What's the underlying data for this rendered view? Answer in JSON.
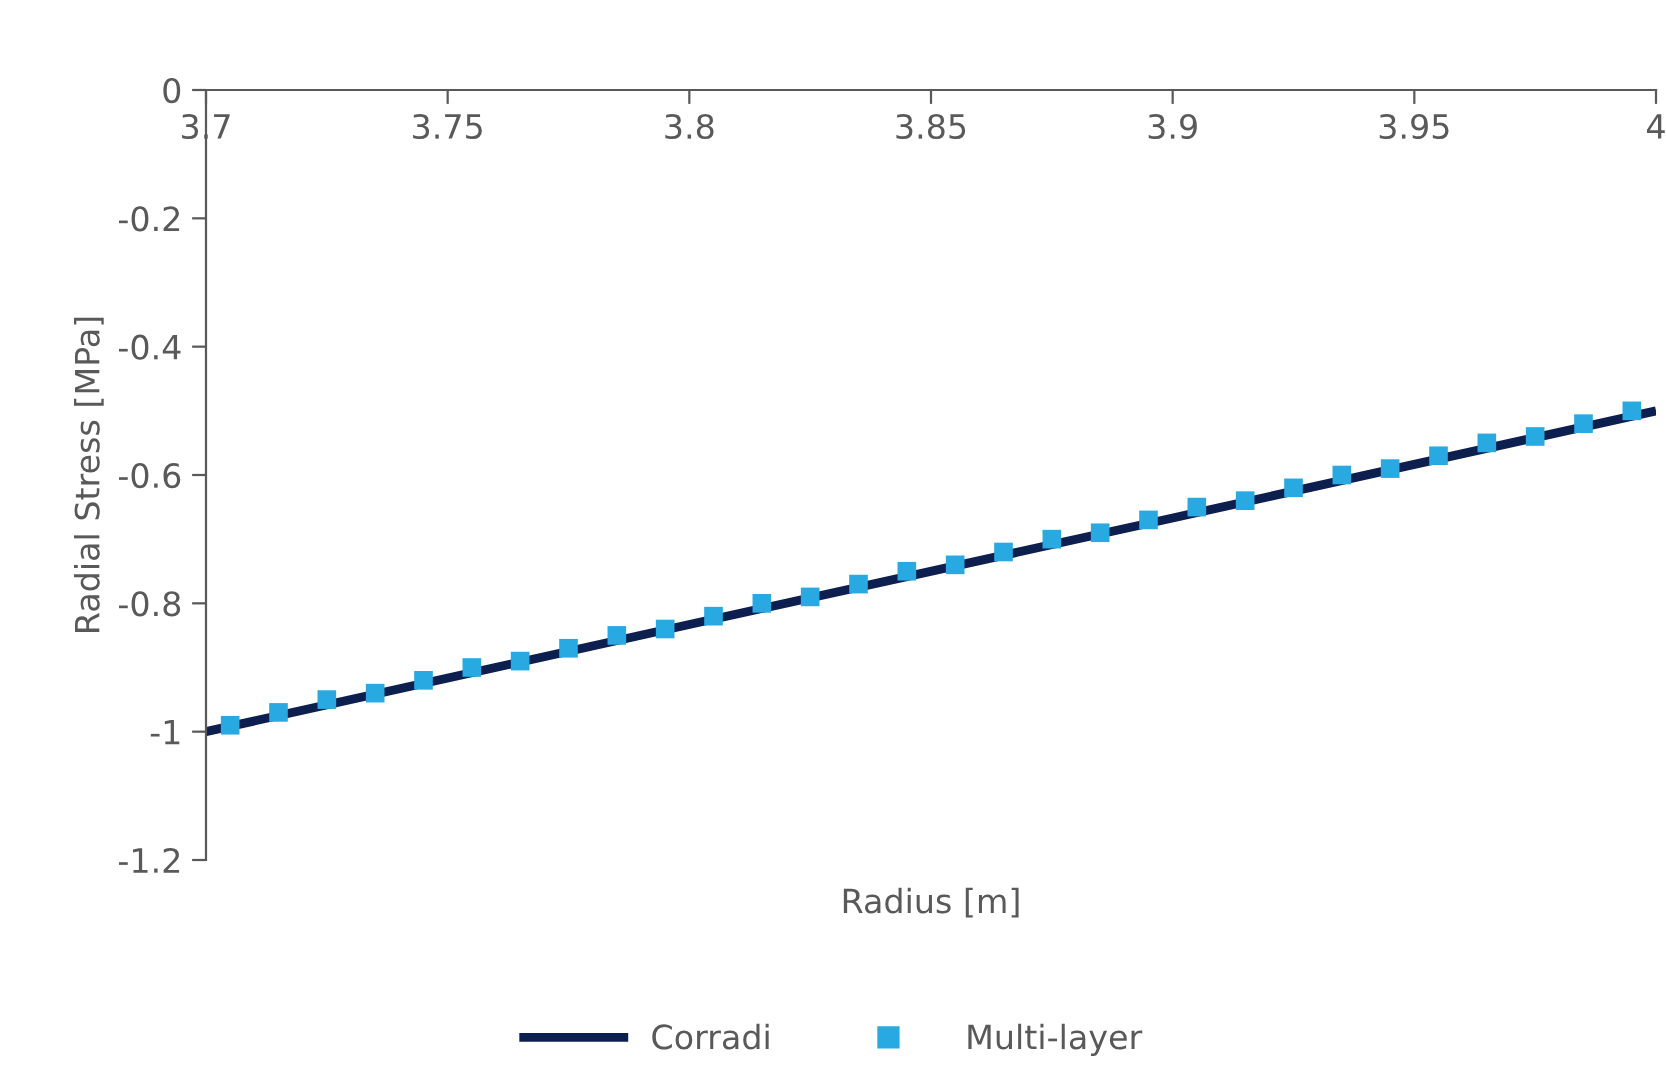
{
  "chart_data": {
    "type": "line",
    "xlabel": "Radius [m]",
    "ylabel": "Radial Stress [MPa]",
    "xlim": [
      3.7,
      4
    ],
    "xticks": [
      3.7,
      3.75,
      3.8,
      3.85,
      3.9,
      3.95,
      4
    ],
    "ylim": [
      -1.2,
      0
    ],
    "yticks": [
      -1.2,
      -1,
      -0.8,
      -0.6,
      -0.4,
      -0.2,
      0
    ],
    "grid": false,
    "legend": "bottom",
    "series": [
      {
        "name": "Corradi",
        "color": "#0d1f4f",
        "marker": "none",
        "line_style": "solid",
        "x": [
          3.7,
          3.8,
          3.9,
          4
        ],
        "values": [
          -1,
          -0.833,
          -0.667,
          -0.5
        ]
      },
      {
        "name": "Multi-layer",
        "type": "scatter",
        "color": "#29a9e1",
        "marker": "square",
        "x": [
          3.705,
          3.715,
          3.725,
          3.735,
          3.745,
          3.755,
          3.765,
          3.775,
          3.785,
          3.795,
          3.805,
          3.815,
          3.825,
          3.835,
          3.845,
          3.855,
          3.865,
          3.875,
          3.885,
          3.895,
          3.905,
          3.915,
          3.925,
          3.935,
          3.945,
          3.955,
          3.965,
          3.975,
          3.985,
          3.995
        ],
        "values": [
          -0.99,
          -0.97,
          -0.95,
          -0.94,
          -0.92,
          -0.9,
          -0.89,
          -0.87,
          -0.85,
          -0.84,
          -0.82,
          -0.8,
          -0.79,
          -0.77,
          -0.75,
          -0.74,
          -0.72,
          -0.7,
          -0.69,
          -0.67,
          -0.65,
          -0.64,
          -0.62,
          -0.6,
          -0.59,
          -0.57,
          -0.55,
          -0.54,
          -0.52,
          -0.5
        ]
      }
    ]
  }
}
